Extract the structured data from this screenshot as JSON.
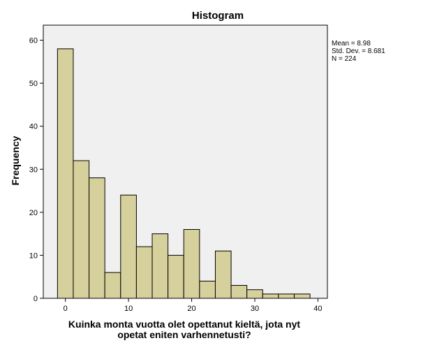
{
  "chart_data": {
    "type": "bar",
    "title": "Histogram",
    "xlabel": "Kuinka monta vuotta olet opettanut kieltä, jota nyt opetat eniten varhennetusti?",
    "xlabel_lines": [
      "Kuinka monta vuotta olet opettanut kieltä, jota nyt",
      "opetat eniten varhennetusti?"
    ],
    "ylabel": "Frequency",
    "bin_edges": [
      -1.25,
      1.25,
      3.75,
      6.25,
      8.75,
      11.25,
      13.75,
      16.25,
      18.75,
      21.25,
      23.75,
      26.25,
      28.75,
      31.25,
      33.75,
      36.25,
      38.75
    ],
    "values": [
      58,
      32,
      28,
      6,
      24,
      12,
      15,
      10,
      16,
      4,
      11,
      3,
      2,
      1,
      1,
      1
    ],
    "xlim": [
      -3.5,
      41.5
    ],
    "ylim": [
      0,
      63.5
    ],
    "xticks": [
      0,
      10,
      20,
      30,
      40
    ],
    "yticks": [
      0,
      10,
      20,
      30,
      40,
      50,
      60
    ],
    "grid": false,
    "bar_color": "#d6d09c",
    "plot_background": "#f0f0f0",
    "stats": {
      "mean": "Mean = 8.98",
      "std_dev": "Std. Dev. = 8.681",
      "n": "N = 224"
    }
  }
}
